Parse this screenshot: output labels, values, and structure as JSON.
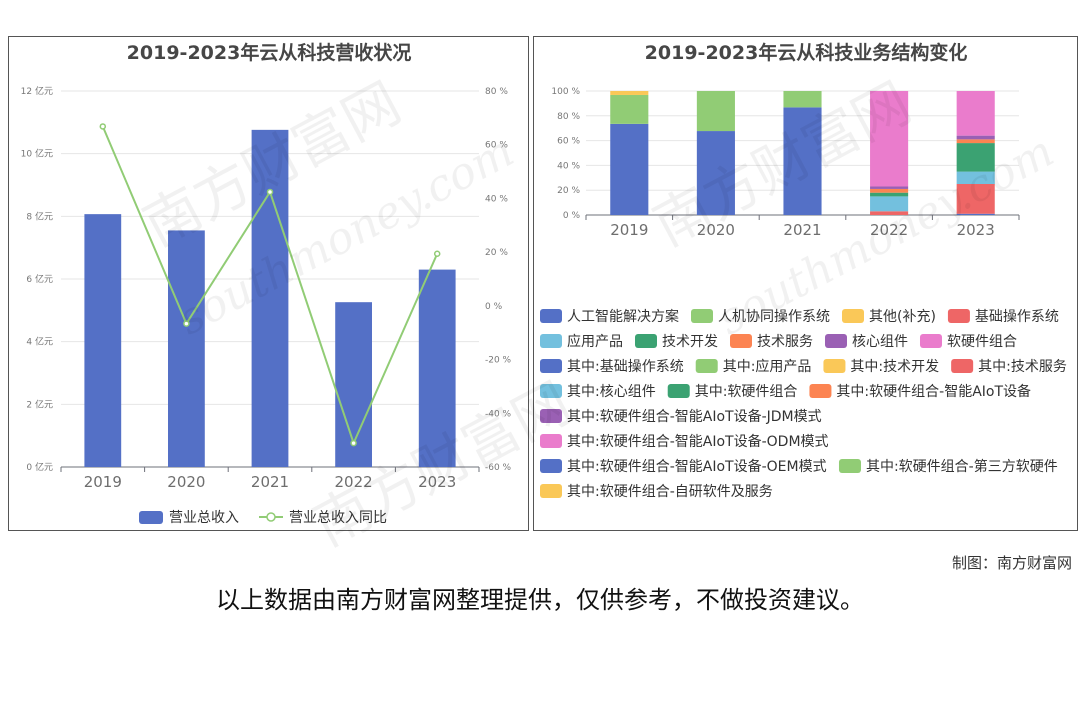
{
  "credit": "制图：南方财富网",
  "disclaimer": "以上数据由南方财富网整理提供，仅供参考，不做投资建议。",
  "watermark": {
    "cn": "南方财富网",
    "en": "southmoney.com"
  },
  "colors": {
    "bar_blue": "#5470c6",
    "line_green": "#91cc75",
    "palette": [
      "#5470c6",
      "#91cc75",
      "#fac858",
      "#ee6666",
      "#73c0de",
      "#3ba272",
      "#fc8452",
      "#9a60b4",
      "#ea7ccc",
      "#5470c6",
      "#91cc75",
      "#fac858",
      "#ee6666",
      "#73c0de",
      "#3ba272",
      "#fc8452",
      "#9a60b4",
      "#ea7ccc",
      "#5470c6",
      "#91cc75",
      "#fac858"
    ]
  },
  "chart_data": [
    {
      "type": "bar",
      "title": "2019-2023年云从科技营收状况",
      "categories": [
        "2019",
        "2020",
        "2021",
        "2022",
        "2023"
      ],
      "y_left": {
        "ticks": [
          "0 亿元",
          "2 亿元",
          "4 亿元",
          "6 亿元",
          "8 亿元",
          "10 亿元",
          "12 亿元"
        ],
        "min": 0,
        "max": 12
      },
      "y_right": {
        "ticks": [
          "-60 %",
          "-40 %",
          "-20 %",
          "0 %",
          "20 %",
          "40 %",
          "60 %",
          "80 %"
        ],
        "min": -60,
        "max": 80
      },
      "series": [
        {
          "name": "营业总收入",
          "type": "bar",
          "axis": "left",
          "values": [
            8.07,
            7.55,
            10.76,
            5.26,
            6.3
          ]
        },
        {
          "name": "营业总收入同比",
          "type": "line",
          "axis": "right",
          "values": [
            66.8,
            -6.6,
            42.4,
            -51.1,
            19.4
          ]
        }
      ],
      "legend_position": "bottom"
    },
    {
      "type": "bar",
      "stacked": true,
      "title": "2019-2023年云从科技业务结构变化",
      "categories": [
        "2019",
        "2020",
        "2021",
        "2022",
        "2023"
      ],
      "y_ticks": [
        "0 %",
        "20 %",
        "40 %",
        "60 %",
        "80 %",
        "100 %"
      ],
      "ylim": [
        0,
        100
      ],
      "series": [
        {
          "name": "人工智能解决方案",
          "values": [
            73.5,
            67.7,
            86.8,
            0,
            0
          ]
        },
        {
          "name": "人机协同操作系统",
          "values": [
            23.3,
            32.3,
            13.2,
            0,
            0
          ]
        },
        {
          "name": "其他(补充)",
          "values": [
            3.2,
            0,
            0,
            0,
            0
          ]
        },
        {
          "name": "基础操作系统",
          "values": [
            0,
            0,
            0,
            3,
            0
          ]
        },
        {
          "name": "应用产品",
          "values": [
            0,
            0,
            0,
            12,
            0
          ]
        },
        {
          "name": "技术开发",
          "values": [
            0,
            0,
            0,
            3,
            0
          ]
        },
        {
          "name": "技术服务",
          "values": [
            0,
            0,
            0,
            3,
            0
          ]
        },
        {
          "name": "核心组件",
          "values": [
            0,
            0,
            0,
            2,
            0
          ]
        },
        {
          "name": "软硬件组合",
          "values": [
            0,
            0,
            0,
            77,
            0
          ]
        },
        {
          "name": "其中:基础操作系统",
          "values": [
            0,
            0,
            0,
            0,
            1
          ]
        },
        {
          "name": "其中:应用产品",
          "values": [
            0,
            0,
            0,
            0,
            0
          ]
        },
        {
          "name": "其中:技术开发",
          "values": [
            0,
            0,
            0,
            0,
            0
          ]
        },
        {
          "name": "其中:技术服务",
          "values": [
            0,
            0,
            0,
            0,
            24
          ]
        },
        {
          "name": "其中:核心组件",
          "values": [
            0,
            0,
            0,
            0,
            10
          ]
        },
        {
          "name": "其中:软硬件组合",
          "values": [
            0,
            0,
            0,
            0,
            23
          ]
        },
        {
          "name": "其中:软硬件组合-智能AIoT设备",
          "values": [
            0,
            0,
            0,
            0,
            3
          ]
        },
        {
          "name": "其中:软硬件组合-智能AIoT设备-JDM模式",
          "values": [
            0,
            0,
            0,
            0,
            3
          ]
        },
        {
          "name": "其中:软硬件组合-智能AIoT设备-ODM模式",
          "values": [
            0,
            0,
            0,
            0,
            36
          ]
        },
        {
          "name": "其中:软硬件组合-智能AIoT设备-OEM模式",
          "values": [
            0,
            0,
            0,
            0,
            0
          ]
        },
        {
          "name": "其中:软硬件组合-第三方软硬件",
          "values": [
            0,
            0,
            0,
            0,
            0
          ]
        },
        {
          "name": "其中:软硬件组合-自研软件及服务",
          "values": [
            0,
            0,
            0,
            0,
            0
          ]
        }
      ],
      "legend_position": "bottom"
    }
  ]
}
